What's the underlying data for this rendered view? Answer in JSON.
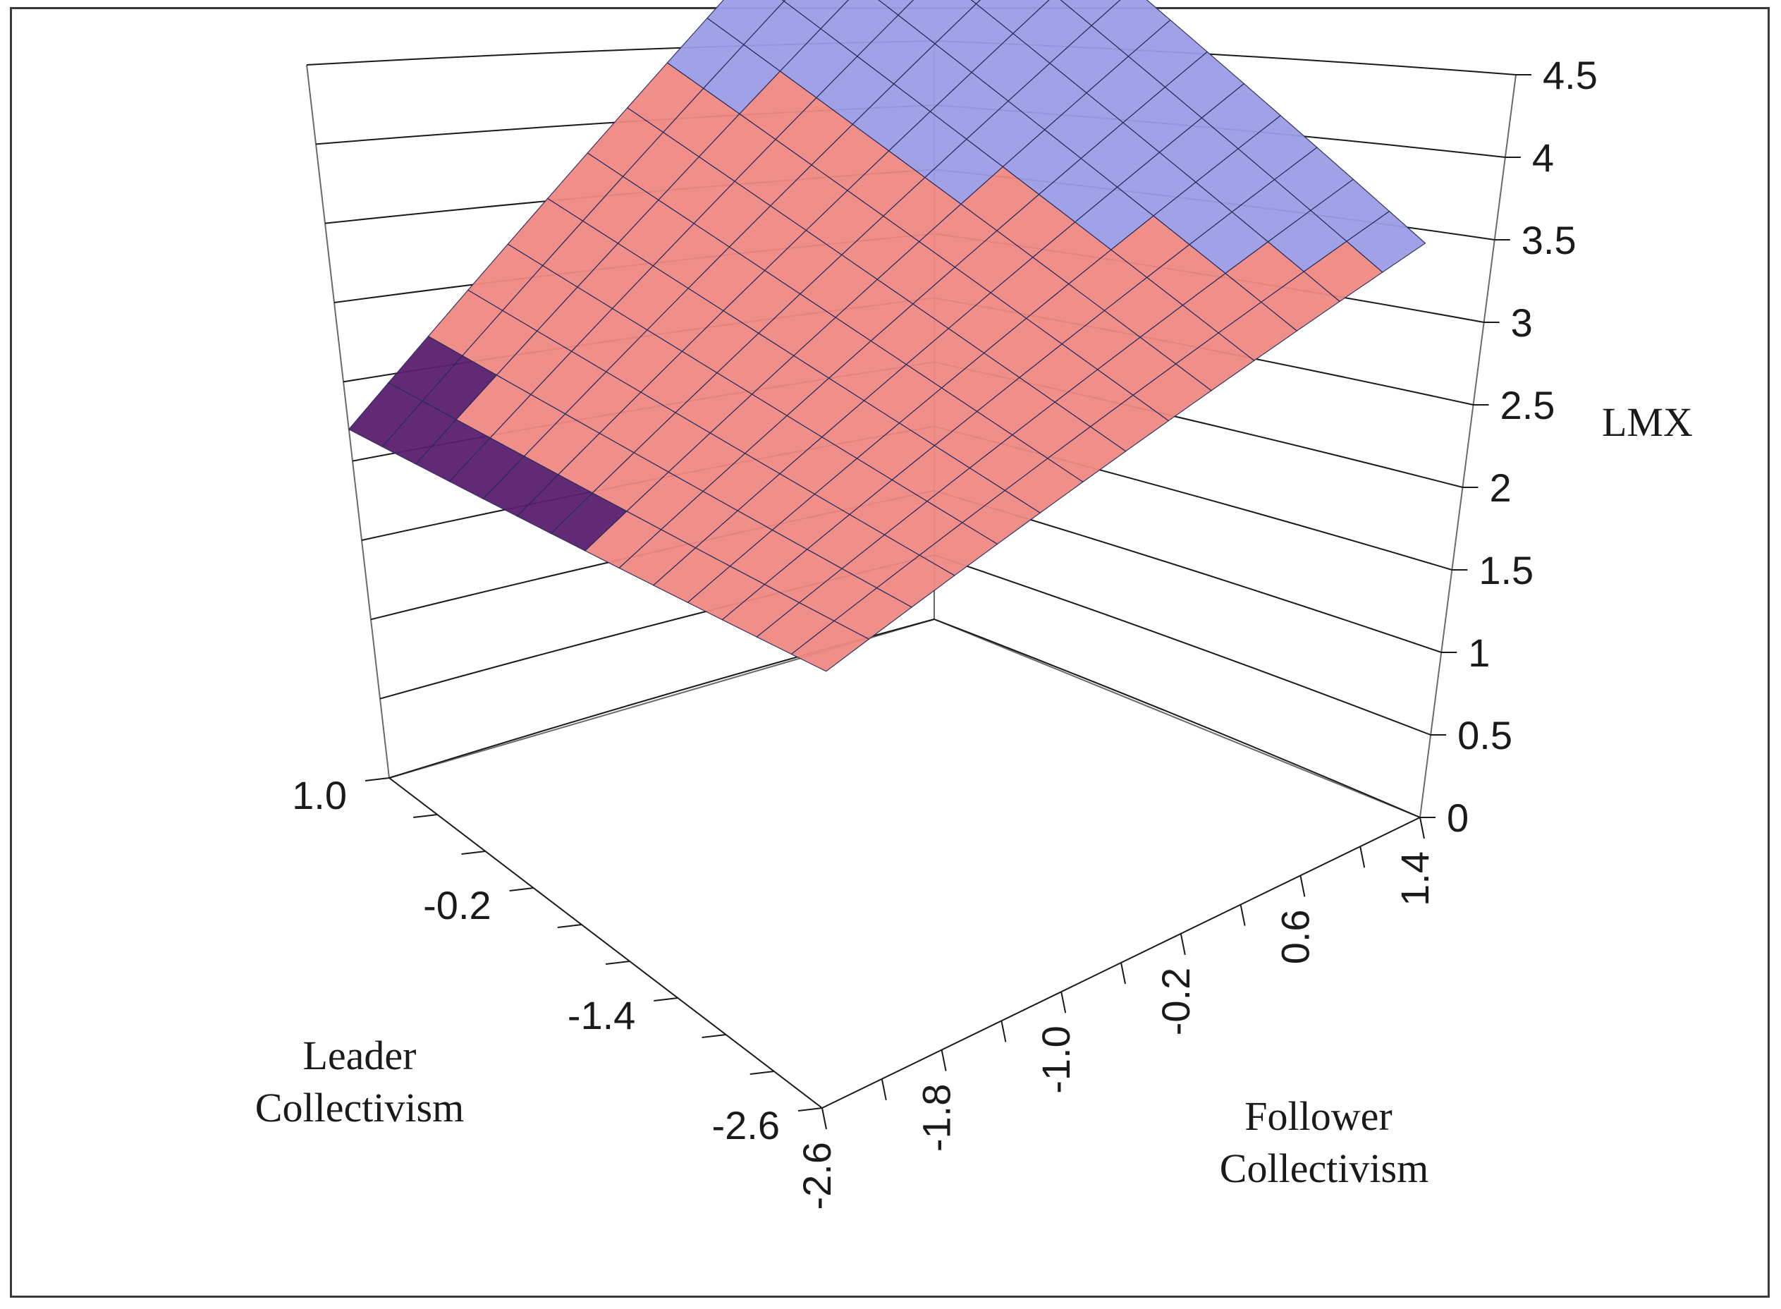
{
  "chart_data": {
    "type": "surface3d",
    "title": "",
    "z_axis": {
      "label": "LMX",
      "ticks": [
        "0",
        "0.5",
        "1",
        "1.5",
        "2",
        "2.5",
        "3",
        "3.5",
        "4",
        "4.5"
      ],
      "range": [
        0,
        4.5
      ]
    },
    "leader_axis": {
      "label_lines": [
        "Leader",
        "Collectivism"
      ],
      "ticks": [
        "1.0",
        "-0.2",
        "-1.4",
        "-2.6"
      ],
      "range": [
        -2.6,
        1.0
      ]
    },
    "follower_axis": {
      "label_lines": [
        "Follower",
        "Collectivism"
      ],
      "ticks": [
        "-2.6",
        "-1.8",
        "-1.0",
        "-0.2",
        "0.6",
        "1.4"
      ],
      "range": [
        -2.6,
        1.4
      ]
    },
    "surface_points": [
      {
        "leader": 1.0,
        "follower": -2.6,
        "lmx": 2.2
      },
      {
        "leader": 1.0,
        "follower": 1.4,
        "lmx": 4.5
      },
      {
        "leader": -2.6,
        "follower": 1.4,
        "lmx": 3.7
      }
    ],
    "color_bands": [
      {
        "range": [
          1.5,
          2.5
        ],
        "color": "#5a1e6e"
      },
      {
        "range": [
          2.5,
          3.5
        ],
        "color": "#f08a84"
      },
      {
        "range": [
          3.5,
          4.5
        ],
        "color": "#9c9ce6"
      }
    ],
    "grid": true
  }
}
